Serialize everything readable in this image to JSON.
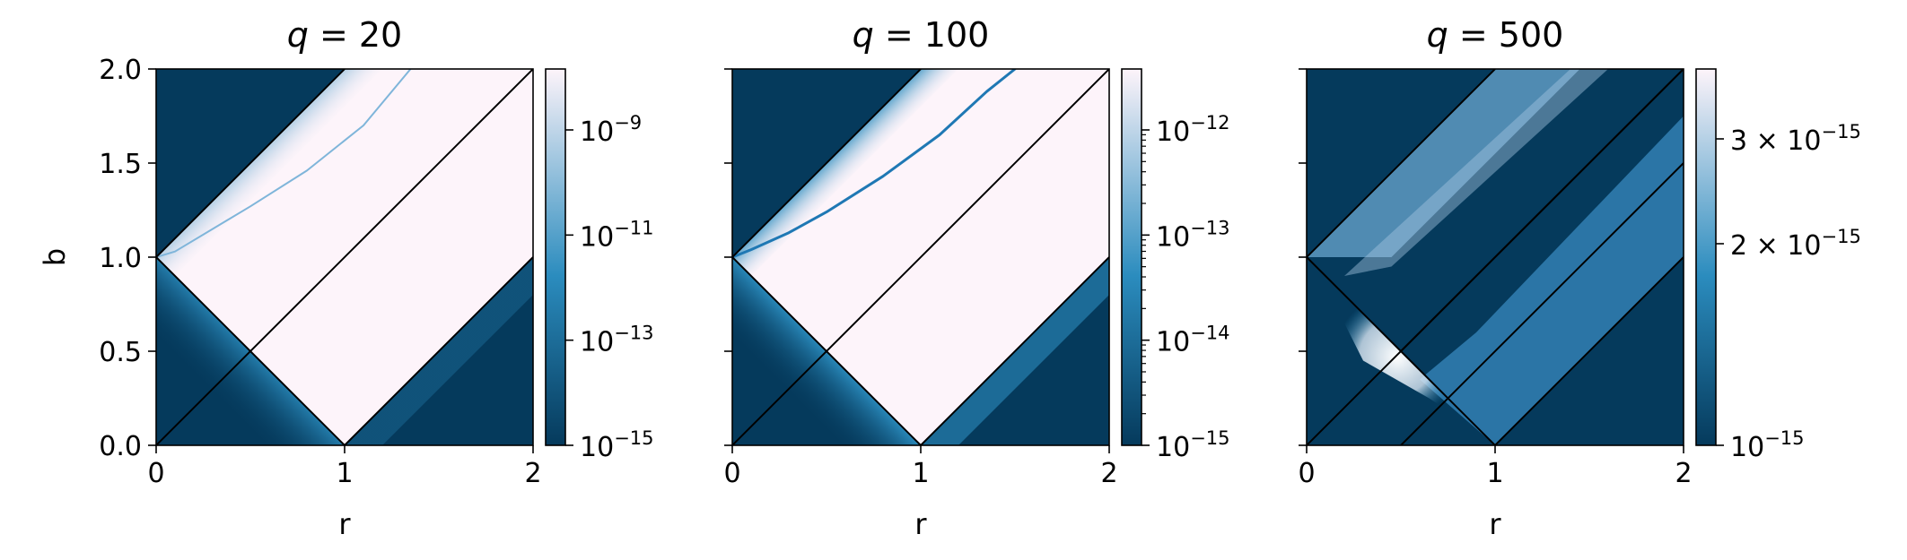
{
  "chart_data": [
    {
      "type": "heatmap",
      "title_var": "q",
      "title_val": "20",
      "xlabel": "r",
      "ylabel": "b",
      "xlim": [
        0,
        2
      ],
      "ylim": [
        0,
        2
      ],
      "xticks": [
        "0",
        "1",
        "2"
      ],
      "yticks": [
        "0.0",
        "0.5",
        "1.0",
        "1.5",
        "2.0"
      ],
      "colorbar": {
        "scale": "log",
        "ticks": [
          {
            "mant": "",
            "exp": "-9"
          },
          {
            "mant": "",
            "exp": "-11"
          },
          {
            "mant": "",
            "exp": "-13"
          },
          {
            "mant": "",
            "exp": "-15"
          }
        ]
      },
      "boundary_lines": [
        {
          "from": [
            0,
            1
          ],
          "to": [
            1,
            0
          ]
        },
        {
          "from": [
            0,
            1
          ],
          "to": [
            1,
            2
          ]
        },
        {
          "from": [
            0,
            0
          ],
          "to": [
            2,
            2
          ]
        },
        {
          "from": [
            1,
            0
          ],
          "to": [
            2,
            1
          ]
        }
      ],
      "curve": [
        [
          0.0,
          1.0
        ],
        [
          0.1,
          1.03
        ],
        [
          0.3,
          1.15
        ],
        [
          0.5,
          1.27
        ],
        [
          0.8,
          1.46
        ],
        [
          1.1,
          1.7
        ],
        [
          1.35,
          2.0
        ]
      ],
      "colors": {
        "low": "#053a5c",
        "mid": "#2b8cbe",
        "high": "#fdf4fa"
      }
    },
    {
      "type": "heatmap",
      "title_var": "q",
      "title_val": "100",
      "xlabel": "r",
      "ylabel": "",
      "xlim": [
        0,
        2
      ],
      "ylim": [
        0,
        2
      ],
      "xticks": [
        "0",
        "1",
        "2"
      ],
      "yticks": [],
      "colorbar": {
        "scale": "log",
        "ticks": [
          {
            "mant": "",
            "exp": "-12"
          },
          {
            "mant": "",
            "exp": "-13"
          },
          {
            "mant": "",
            "exp": "-14"
          },
          {
            "mant": "",
            "exp": "-15"
          }
        ]
      },
      "boundary_lines": [
        {
          "from": [
            0,
            1
          ],
          "to": [
            1,
            0
          ]
        },
        {
          "from": [
            0,
            1
          ],
          "to": [
            1,
            2
          ]
        },
        {
          "from": [
            0,
            0
          ],
          "to": [
            2,
            2
          ]
        },
        {
          "from": [
            1,
            0
          ],
          "to": [
            2,
            1
          ]
        }
      ],
      "curve": [
        [
          0.0,
          1.0
        ],
        [
          0.1,
          1.04
        ],
        [
          0.3,
          1.13
        ],
        [
          0.5,
          1.24
        ],
        [
          0.8,
          1.43
        ],
        [
          1.1,
          1.65
        ],
        [
          1.35,
          1.88
        ],
        [
          1.5,
          2.0
        ]
      ],
      "colors": {
        "low": "#053a5c",
        "mid": "#2b8cbe",
        "high": "#fdf4fa"
      }
    },
    {
      "type": "heatmap",
      "title_var": "q",
      "title_val": "500",
      "xlabel": "r",
      "ylabel": "",
      "xlim": [
        0,
        2
      ],
      "ylim": [
        0,
        2
      ],
      "xticks": [
        "0",
        "1",
        "2"
      ],
      "yticks": [],
      "colorbar": {
        "scale": "log",
        "ticks": [
          {
            "mant": "3 × ",
            "exp": "-15"
          },
          {
            "mant": "2 × ",
            "exp": "-15"
          },
          {
            "mant": "",
            "exp": "-15"
          }
        ]
      },
      "boundary_lines": [
        {
          "from": [
            0,
            1
          ],
          "to": [
            1,
            0
          ]
        },
        {
          "from": [
            0,
            1
          ],
          "to": [
            1,
            2
          ]
        },
        {
          "from": [
            0,
            0
          ],
          "to": [
            2,
            2
          ]
        },
        {
          "from": [
            1,
            0
          ],
          "to": [
            2,
            1
          ]
        },
        {
          "from": [
            0.5,
            0
          ],
          "to": [
            2,
            1.5
          ]
        },
        {
          "from": [
            0.5,
            0.5
          ],
          "to": [
            2,
            2
          ]
        }
      ],
      "curve": [],
      "colors": {
        "low": "#053a5c",
        "mid": "#2b8cbe",
        "high": "#fdf4fa"
      }
    }
  ]
}
